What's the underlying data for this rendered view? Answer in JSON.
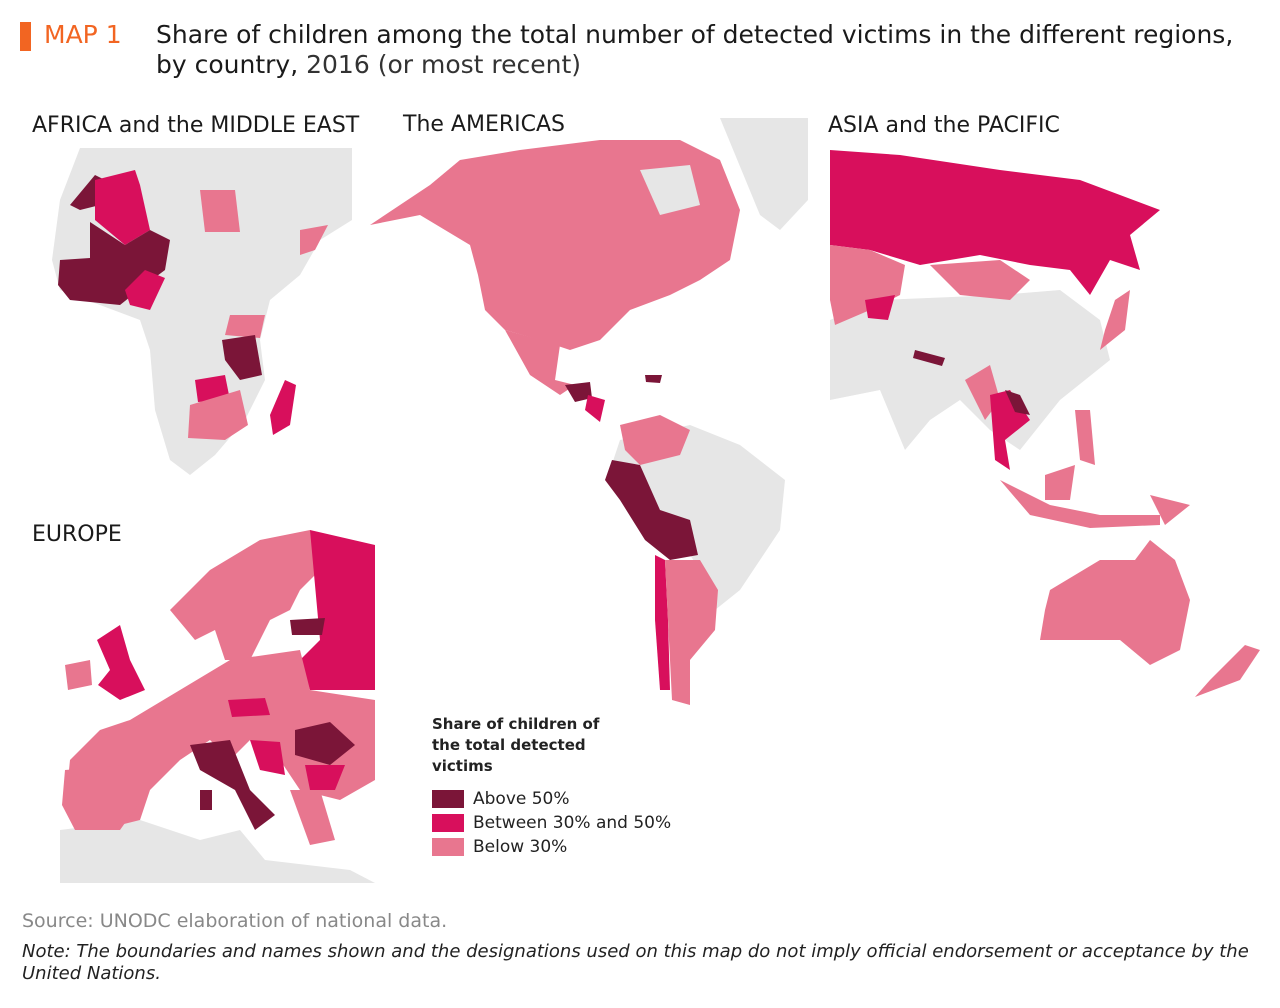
{
  "header": {
    "map_label": "MAP 1",
    "title_bold": "Share of children among the total number of detected victims in the different regions, by country,",
    "title_light": " 2016 (or most recent)"
  },
  "regions": {
    "africa": "AFRICA and the MIDDLE EAST",
    "americas": "The AMERICAS",
    "asia": "ASIA and the PACIFIC",
    "europe": "EUROPE"
  },
  "legend": {
    "title": "Share of children of the total detected victims",
    "items": [
      {
        "label": "Above 50%",
        "color": "#7b1538"
      },
      {
        "label": "Between 30% and 50%",
        "color": "#d80f5c"
      },
      {
        "label": "Below 30%",
        "color": "#e8768f"
      }
    ]
  },
  "colors": {
    "accent": "#f26522",
    "no_data": "#e6e6e6"
  },
  "footer": {
    "source": "Source: UNODC elaboration of national data.",
    "note": "Note: The boundaries and names shown and the designations used on this map do not imply official endorsement or acceptance by the United Nations."
  }
}
